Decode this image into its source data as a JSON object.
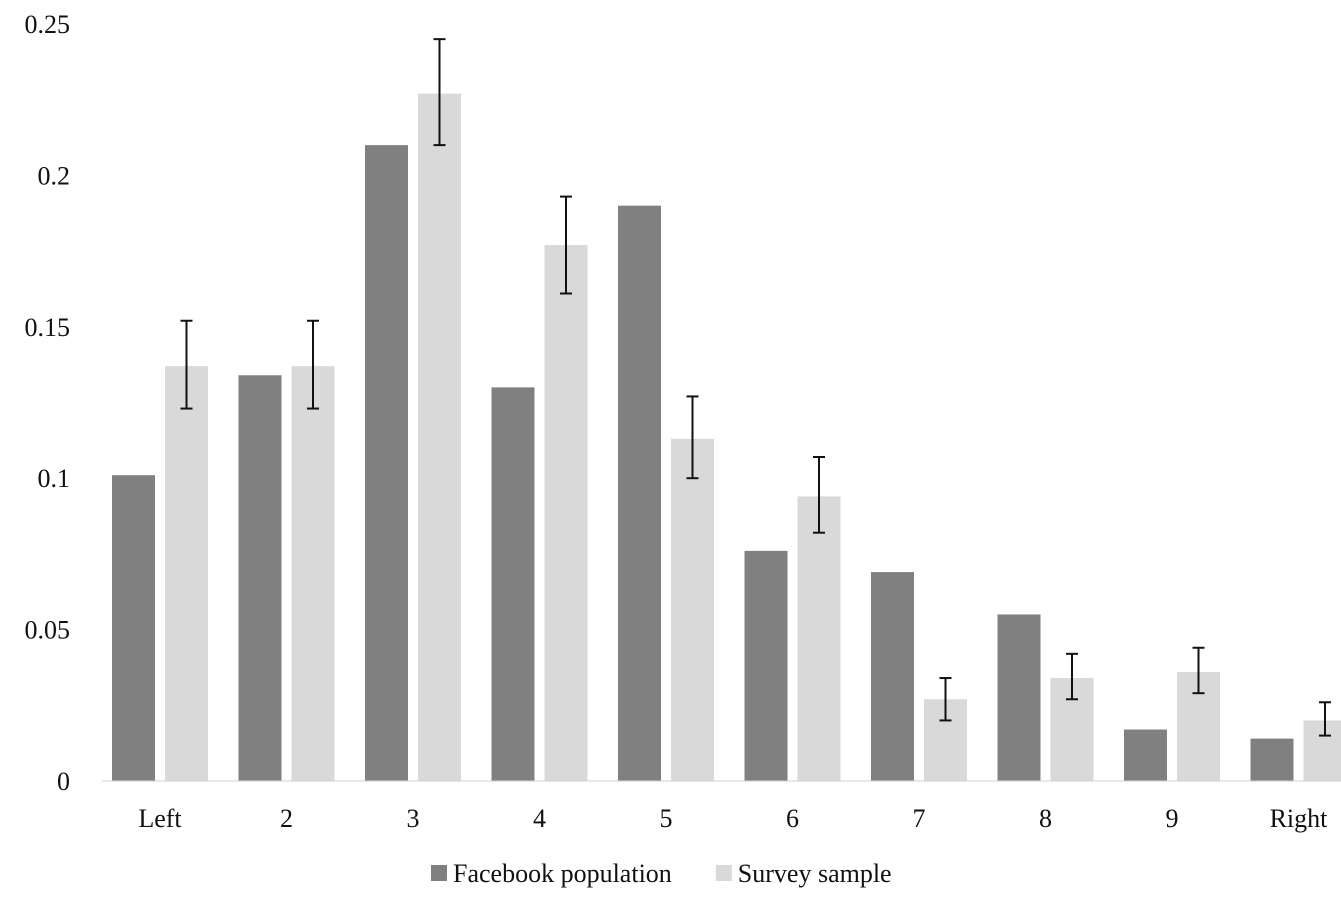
{
  "chart_data": {
    "type": "bar",
    "title": "",
    "xlabel": "",
    "ylabel": "",
    "categories": [
      "Left",
      "2",
      "3",
      "4",
      "5",
      "6",
      "7",
      "8",
      "9",
      "Right"
    ],
    "ylim": [
      0,
      0.25
    ],
    "yticks": [
      "0",
      "0.05",
      "0.1",
      "0.15",
      "0.2",
      "0.25"
    ],
    "grid": false,
    "legend_position": "bottom-center",
    "series": [
      {
        "name": "Facebook population",
        "color": "#808080",
        "values": [
          0.101,
          0.134,
          0.21,
          0.13,
          0.19,
          0.076,
          0.069,
          0.055,
          0.017,
          0.014
        ]
      },
      {
        "name": "Survey sample",
        "color": "#d9d9d9",
        "values": [
          0.137,
          0.137,
          0.227,
          0.177,
          0.113,
          0.094,
          0.027,
          0.034,
          0.036,
          0.02
        ],
        "error_low": [
          0.123,
          0.123,
          0.21,
          0.161,
          0.1,
          0.082,
          0.02,
          0.027,
          0.029,
          0.015
        ],
        "error_high": [
          0.152,
          0.152,
          0.245,
          0.193,
          0.127,
          0.107,
          0.034,
          0.042,
          0.044,
          0.026
        ]
      }
    ]
  }
}
